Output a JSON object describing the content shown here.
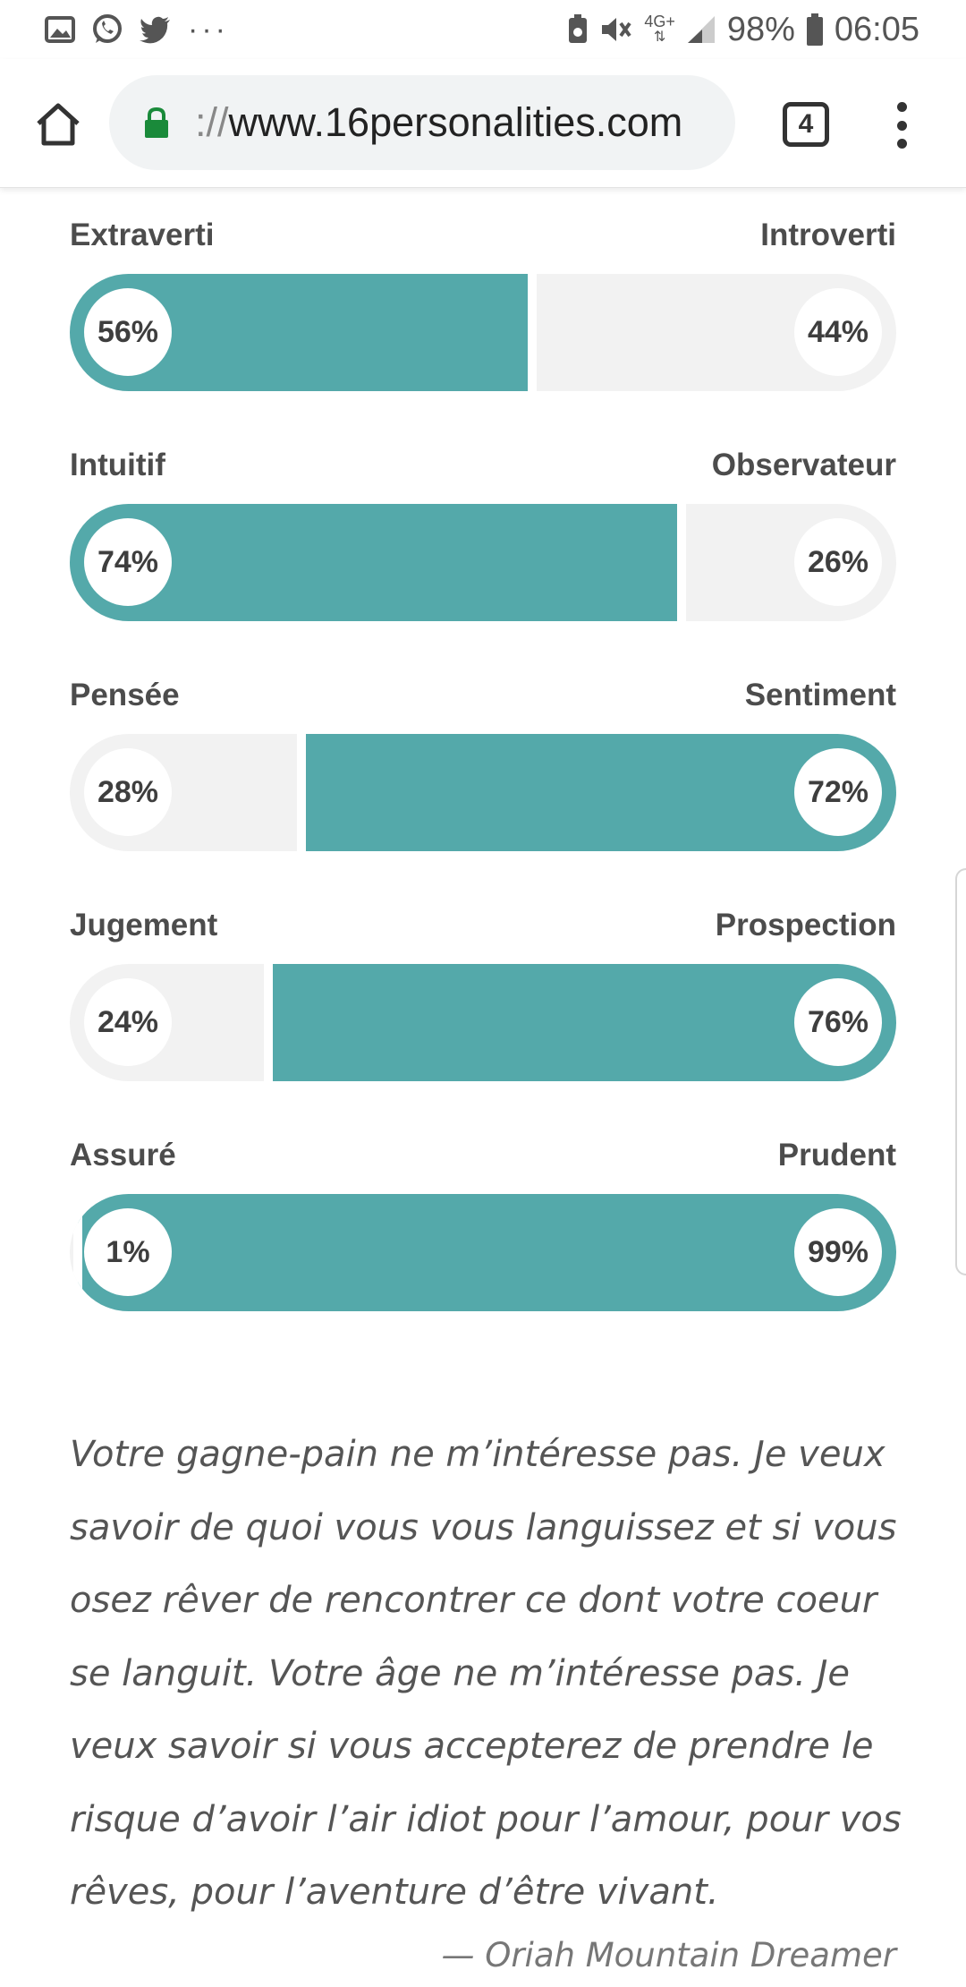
{
  "status_bar": {
    "left_icons": [
      "gallery-icon",
      "whatsapp-icon",
      "twitter-icon",
      "more-icon"
    ],
    "network": "4G+",
    "battery_percent": "98%",
    "time": "06:05"
  },
  "browser": {
    "url_scheme": "://",
    "url_host": "www.16personalities.com",
    "tab_count": "4"
  },
  "traits": [
    {
      "left": "Extraverti",
      "right": "Introverti",
      "left_pct": "56%",
      "right_pct": "44%",
      "dominant": "left",
      "left_value": 56
    },
    {
      "left": "Intuitif",
      "right": "Observateur",
      "left_pct": "74%",
      "right_pct": "26%",
      "dominant": "left",
      "left_value": 74
    },
    {
      "left": "Pensée",
      "right": "Sentiment",
      "left_pct": "28%",
      "right_pct": "72%",
      "dominant": "right",
      "left_value": 28
    },
    {
      "left": "Jugement",
      "right": "Prospection",
      "left_pct": "24%",
      "right_pct": "76%",
      "dominant": "right",
      "left_value": 24
    },
    {
      "left": "Assuré",
      "right": "Prudent",
      "left_pct": "1%",
      "right_pct": "99%",
      "dominant": "right",
      "left_value": 1
    }
  ],
  "quote": {
    "text": "Votre gagne-pain ne m’intéresse pas. Je veux savoir de quoi vous vous languissez et si vous osez rêver de rencontrer ce dont votre coeur se languit. Votre âge ne m’intéresse pas. Je veux savoir si vous accepterez de prendre le risque d’avoir l’air idiot pour l’amour, pour vos rêves, pour l’aventure d’être vivant.",
    "author": "— Oriah Mountain Dreamer"
  },
  "colors": {
    "accent": "#54a9aa",
    "track": "#f2f2f2"
  }
}
